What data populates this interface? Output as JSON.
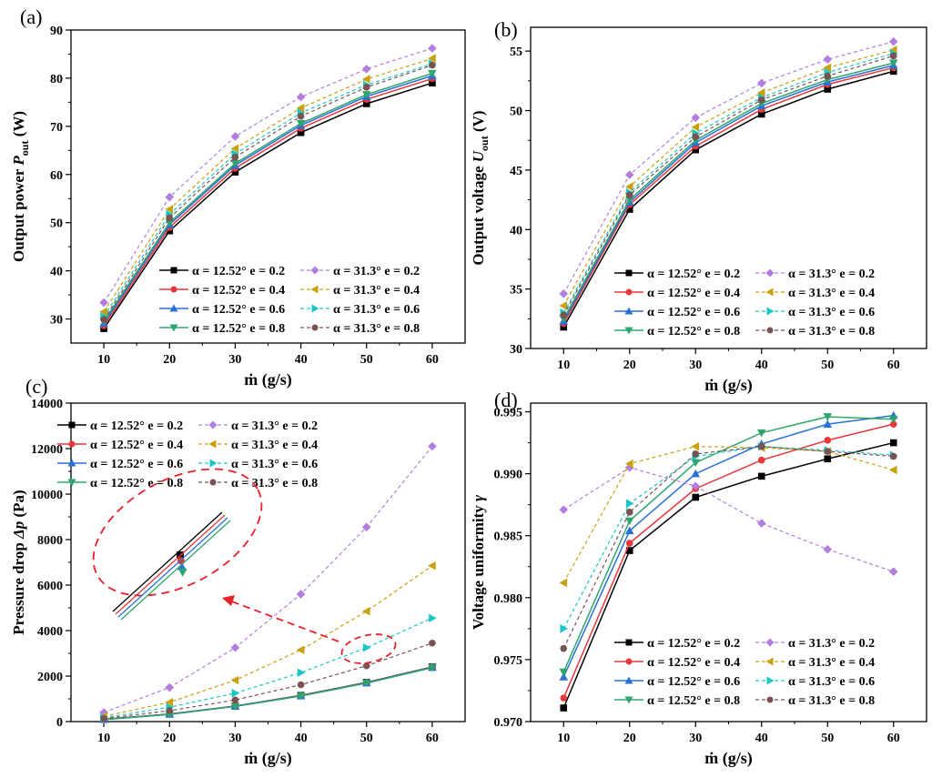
{
  "legend_labels": [
    "α = 12.52° e = 0.2",
    "α = 12.52° e = 0.4",
    "α = 12.52° e = 0.6",
    "α = 12.52° e = 0.8",
    "α = 31.3° e = 0.2",
    "α = 31.3° e = 0.4",
    "α = 31.3° e = 0.6",
    "α = 31.3° e = 0.8"
  ],
  "series_styles": [
    {
      "color": "#000000",
      "marker": "square",
      "dash": false
    },
    {
      "color": "#e8373b",
      "marker": "circle",
      "dash": false
    },
    {
      "color": "#2a6fd6",
      "marker": "triangle-up",
      "dash": false
    },
    {
      "color": "#2fa56e",
      "marker": "triangle-down",
      "dash": false
    },
    {
      "color": "#b27de0",
      "marker": "diamond",
      "dash": true
    },
    {
      "color": "#c9a010",
      "marker": "triangle-left",
      "dash": true
    },
    {
      "color": "#1bc6c6",
      "marker": "triangle-right",
      "dash": true
    },
    {
      "color": "#7b5252",
      "marker": "circle",
      "dash": true
    }
  ],
  "inset_color": "#e8202a",
  "chart_data": [
    {
      "panel": "(a)",
      "type": "line",
      "x": [
        10,
        20,
        30,
        40,
        50,
        60
      ],
      "xlim": [
        5,
        65
      ],
      "xticks": [
        10,
        20,
        30,
        40,
        50,
        60
      ],
      "xlabel": "ṁ (g/s)",
      "ylabel": {
        "text": "Output power ",
        "var": "P",
        "sub": "out",
        "unit": " (W)"
      },
      "ylim": [
        25,
        90
      ],
      "yticks": [
        30,
        40,
        50,
        60,
        70,
        80,
        90
      ],
      "legend": "bottom-right",
      "series": [
        {
          "name": "α = 12.52° e = 0.2",
          "values": [
            28.0,
            48.3,
            60.5,
            68.7,
            74.7,
            79.0
          ]
        },
        {
          "name": "α = 12.52° e = 0.4",
          "values": [
            28.6,
            49.0,
            61.3,
            69.6,
            75.6,
            79.9
          ]
        },
        {
          "name": "α = 12.52° e = 0.6",
          "values": [
            29.1,
            49.6,
            61.9,
            70.2,
            76.2,
            80.5
          ]
        },
        {
          "name": "α = 12.52° e = 0.8",
          "values": [
            29.5,
            50.0,
            62.3,
            70.6,
            76.6,
            81.0
          ]
        },
        {
          "name": "α = 31.3° e = 0.2",
          "values": [
            33.4,
            55.3,
            67.9,
            76.1,
            81.9,
            86.2
          ]
        },
        {
          "name": "α = 31.3° e = 0.4",
          "values": [
            31.5,
            52.8,
            65.4,
            73.8,
            79.8,
            84.1
          ]
        },
        {
          "name": "α = 31.3° e = 0.6",
          "values": [
            30.5,
            51.7,
            64.3,
            72.8,
            78.6,
            83.0
          ]
        },
        {
          "name": "α = 31.3° e = 0.8",
          "values": [
            29.9,
            51.0,
            63.6,
            72.1,
            78.1,
            82.7
          ]
        }
      ]
    },
    {
      "panel": "(b)",
      "type": "line",
      "x": [
        10,
        20,
        30,
        40,
        50,
        60
      ],
      "xlim": [
        5,
        65
      ],
      "xticks": [
        10,
        20,
        30,
        40,
        50,
        60
      ],
      "xlabel": "ṁ (g/s)",
      "ylabel": {
        "text": "Output voltage ",
        "var": "U",
        "sub": "out",
        "unit": " (V)"
      },
      "ylim": [
        30,
        57
      ],
      "yticks": [
        30,
        35,
        40,
        45,
        50,
        55
      ],
      "legend": "bottom-right",
      "series": [
        {
          "name": "α = 12.52° e = 0.2",
          "values": [
            31.8,
            41.7,
            46.7,
            49.7,
            51.8,
            53.3
          ]
        },
        {
          "name": "α = 12.52° e = 0.4",
          "values": [
            32.1,
            42.1,
            47.0,
            50.1,
            52.2,
            53.6
          ]
        },
        {
          "name": "α = 12.52° e = 0.6",
          "values": [
            32.3,
            42.3,
            47.3,
            50.4,
            52.4,
            53.8
          ]
        },
        {
          "name": "α = 12.52° e = 0.8",
          "values": [
            32.5,
            42.5,
            47.5,
            50.6,
            52.6,
            54.0
          ]
        },
        {
          "name": "α = 31.3° e = 0.2",
          "values": [
            34.6,
            44.6,
            49.4,
            52.3,
            54.3,
            55.8
          ]
        },
        {
          "name": "α = 31.3° e = 0.4",
          "values": [
            33.6,
            43.6,
            48.6,
            51.5,
            53.6,
            55.1
          ]
        },
        {
          "name": "α = 31.3° e = 0.6",
          "values": [
            33.0,
            43.1,
            48.1,
            51.1,
            53.2,
            54.8
          ]
        },
        {
          "name": "α = 31.3° e = 0.8",
          "values": [
            32.8,
            42.9,
            47.8,
            50.9,
            52.9,
            54.6
          ]
        }
      ]
    },
    {
      "panel": "(c)",
      "type": "line",
      "x": [
        10,
        20,
        30,
        40,
        50,
        60
      ],
      "xlim": [
        5,
        65
      ],
      "xticks": [
        10,
        20,
        30,
        40,
        50,
        60
      ],
      "xlabel": "ṁ (g/s)",
      "ylabel": {
        "text": "Pressure drop ",
        "var": "Δp",
        "sub": "",
        "unit": " (Pa)"
      },
      "ylim": [
        0,
        14000
      ],
      "yticks": [
        0,
        2000,
        4000,
        6000,
        8000,
        10000,
        12000,
        14000
      ],
      "legend": "top-left",
      "series": [
        {
          "name": "α = 12.52° e = 0.2",
          "values": [
            100,
            330,
            680,
            1150,
            1720,
            2400
          ]
        },
        {
          "name": "α = 12.52° e = 0.4",
          "values": [
            95,
            325,
            675,
            1140,
            1710,
            2390
          ]
        },
        {
          "name": "α = 12.52° e = 0.6",
          "values": [
            90,
            320,
            670,
            1130,
            1700,
            2380
          ]
        },
        {
          "name": "α = 12.52° e = 0.8",
          "values": [
            85,
            315,
            665,
            1125,
            1690,
            2370
          ]
        },
        {
          "name": "α = 31.3° e = 0.2",
          "values": [
            400,
            1500,
            3250,
            5600,
            8550,
            12100
          ]
        },
        {
          "name": "α = 31.3° e = 0.4",
          "values": [
            230,
            850,
            1820,
            3150,
            4850,
            6850
          ]
        },
        {
          "name": "α = 31.3° e = 0.6",
          "values": [
            170,
            630,
            1250,
            2150,
            3250,
            4550
          ]
        },
        {
          "name": "α = 31.3° e = 0.8",
          "values": [
            130,
            480,
            950,
            1620,
            2450,
            3450
          ]
        }
      ]
    },
    {
      "panel": "(d)",
      "type": "line",
      "x": [
        10,
        20,
        30,
        40,
        50,
        60
      ],
      "xlim": [
        5,
        65
      ],
      "xticks": [
        10,
        20,
        30,
        40,
        50,
        60
      ],
      "xlabel": "ṁ (g/s)",
      "ylabel": {
        "text": "Voltage uniformity ",
        "var": "γ",
        "sub": "",
        "unit": ""
      },
      "ylim": [
        0.97,
        0.9957
      ],
      "yticks": [
        0.97,
        0.975,
        0.98,
        0.985,
        0.99,
        0.995
      ],
      "legend": "bottom-right",
      "series": [
        {
          "name": "α = 12.52° e = 0.2",
          "values": [
            0.9711,
            0.9838,
            0.9881,
            0.9898,
            0.9912,
            0.9925
          ]
        },
        {
          "name": "α = 12.52° e = 0.4",
          "values": [
            0.9719,
            0.9844,
            0.9888,
            0.9911,
            0.9927,
            0.994
          ]
        },
        {
          "name": "α = 12.52° e = 0.6",
          "values": [
            0.9736,
            0.9854,
            0.99,
            0.9924,
            0.994,
            0.9947
          ]
        },
        {
          "name": "α = 12.52° e = 0.8",
          "values": [
            0.974,
            0.9862,
            0.9909,
            0.9933,
            0.9946,
            0.9944
          ]
        },
        {
          "name": "α = 31.3° e = 0.2",
          "values": [
            0.9871,
            0.9905,
            0.989,
            0.986,
            0.9839,
            0.9821
          ]
        },
        {
          "name": "α = 31.3° e = 0.4",
          "values": [
            0.9812,
            0.9908,
            0.9922,
            0.9921,
            0.9918,
            0.9903
          ]
        },
        {
          "name": "α = 31.3° e = 0.6",
          "values": [
            0.9775,
            0.9876,
            0.9914,
            0.9922,
            0.9919,
            0.9915
          ]
        },
        {
          "name": "α = 31.3° e = 0.8",
          "values": [
            0.9759,
            0.9869,
            0.9916,
            0.9922,
            0.9918,
            0.9914
          ]
        }
      ]
    }
  ]
}
